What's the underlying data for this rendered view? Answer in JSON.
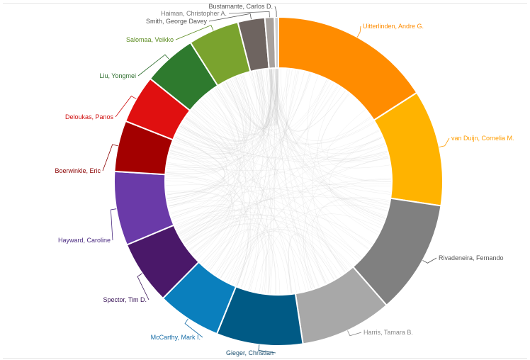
{
  "diagram": {
    "type": "chord",
    "authors": [
      {
        "name": "Uitterlinden, Andre G.",
        "share": 0.162,
        "color": "#ff8c00"
      },
      {
        "name": "van Duijn, Cornelia M.",
        "share": 0.1165,
        "color": "#ffb300"
      },
      {
        "name": "Rivadeneira, Fernando",
        "share": 0.114,
        "color": "#808080"
      },
      {
        "name": "Harris, Tamara B.",
        "share": 0.092,
        "color": "#a8a8a8"
      },
      {
        "name": "Gieger, Christian",
        "share": 0.0865,
        "color": "#005a85"
      },
      {
        "name": "McCarthy, Mark I.",
        "share": 0.064,
        "color": "#0a7fbd"
      },
      {
        "name": "Spector, Tim D.",
        "share": 0.064,
        "color": "#4a1869"
      },
      {
        "name": "Hayward, Caroline",
        "share": 0.074,
        "color": "#6a3aa8"
      },
      {
        "name": "Boerwinkle, Eric",
        "share": 0.051,
        "color": "#a30000"
      },
      {
        "name": "Deloukas, Panos",
        "share": 0.0485,
        "color": "#e01010"
      },
      {
        "name": "Liu, Yongmei",
        "share": 0.0535,
        "color": "#2e7a2e"
      },
      {
        "name": "Salomaa, Veikko",
        "share": 0.051,
        "color": "#7aa32e"
      },
      {
        "name": "Smith, George Davey",
        "share": 0.027,
        "color": "#6e6460"
      },
      {
        "name": "Haiman, Christopher A.",
        "share": 0.0095,
        "color": "#a8a29e"
      },
      {
        "name": "Bustamante, Carlos D.",
        "share": 0.004,
        "color": "#cfcfcf"
      }
    ],
    "label_colors": {
      "Uitterlinden, Andre G.": "#ff8c00",
      "van Duijn, Cornelia M.": "#ff9d00",
      "Rivadeneira, Fernando": "#555555",
      "Harris, Tamara B.": "#888888",
      "Gieger, Christian": "#1a4e6e",
      "McCarthy, Mark I.": "#1a6fa8",
      "Spector, Tim D.": "#3a1558",
      "Hayward, Caroline": "#4a2a80",
      "Boerwinkle, Eric": "#8a0000",
      "Deloukas, Panos": "#d01010",
      "Liu, Yongmei": "#2e6e2e",
      "Salomaa, Veikko": "#5a8a1e",
      "Smith, George Davey": "#555555",
      "Haiman, Christopher A.": "#777777",
      "Bustamante, Carlos D.": "#555555"
    }
  }
}
